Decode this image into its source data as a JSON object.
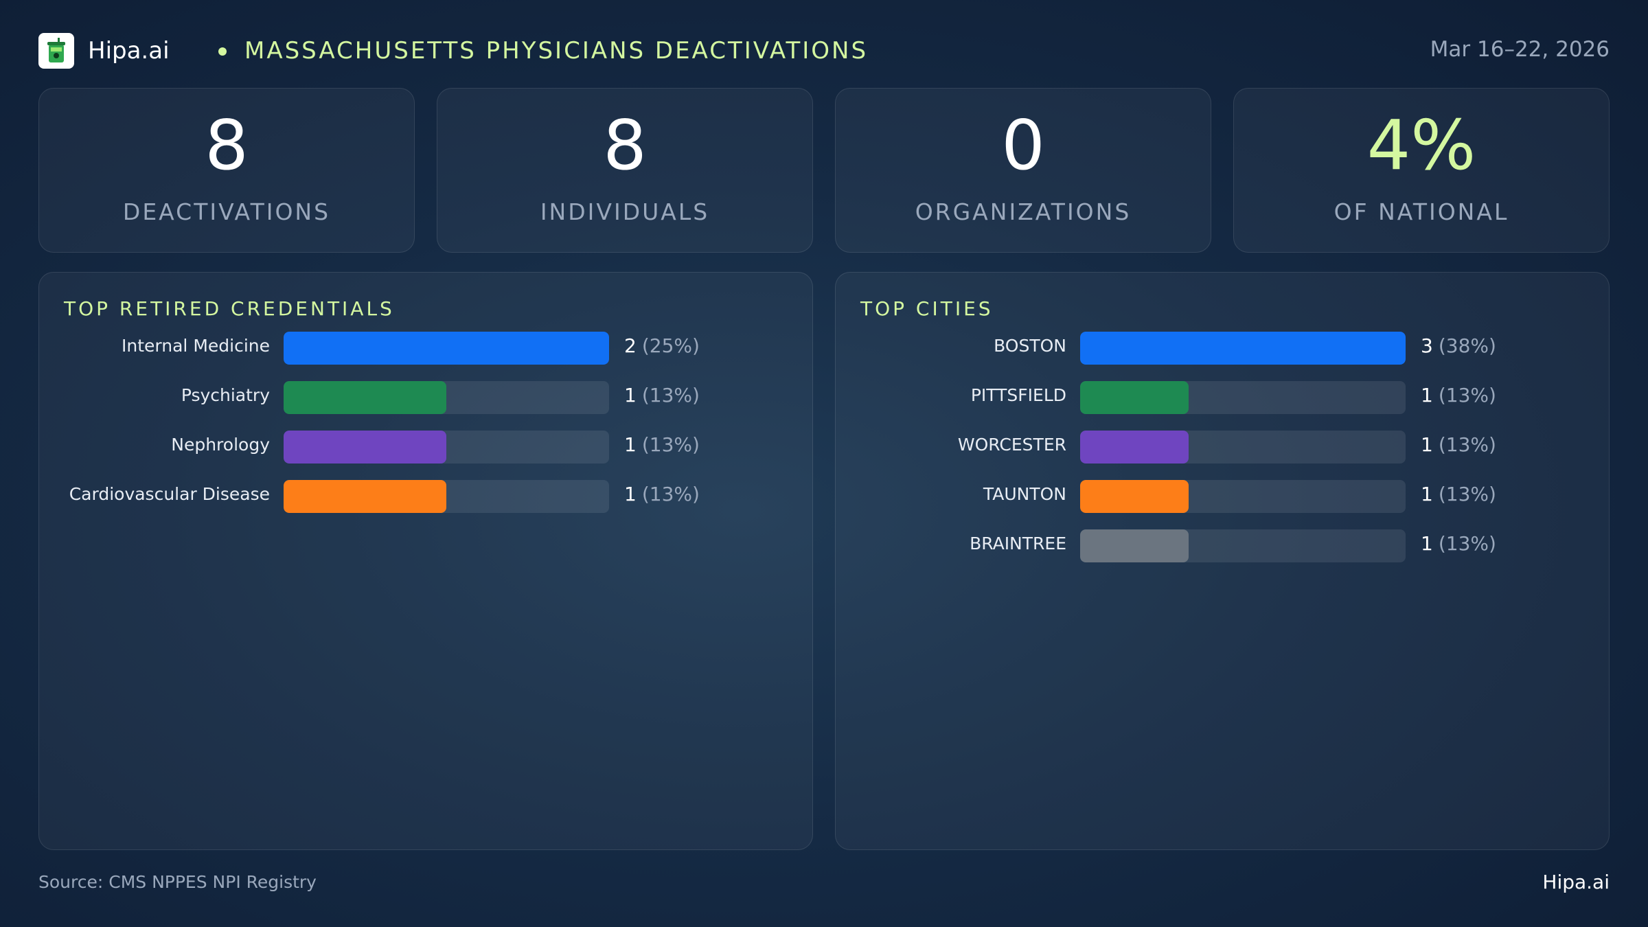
{
  "header": {
    "brand": "Hipa.ai",
    "title": "MASSACHUSETTS PHYSICIANS DEACTIVATIONS",
    "date_range": "Mar 16–22, 2026",
    "logo_icon": "cup-icon"
  },
  "stats": [
    {
      "value": "8",
      "label": "DEACTIVATIONS"
    },
    {
      "value": "8",
      "label": "INDIVIDUALS"
    },
    {
      "value": "0",
      "label": "ORGANIZATIONS"
    },
    {
      "value": "4%",
      "label": "OF NATIONAL"
    }
  ],
  "colors": {
    "accent": "#d4f7a0",
    "blue": "#1170f5",
    "green": "#1e8a52",
    "purple": "#6f45c0",
    "orange": "#fd7e18",
    "gray": "#6b7580"
  },
  "chart_data": [
    {
      "type": "bar",
      "orientation": "horizontal",
      "title": "TOP RETIRED CREDENTIALS",
      "categories": [
        "Internal Medicine",
        "Psychiatry",
        "Nephrology",
        "Cardiovascular Disease"
      ],
      "values": [
        2,
        1,
        1,
        1
      ],
      "value_labels": [
        "2",
        "1",
        "1",
        "1"
      ],
      "percent_labels": [
        "(25%)",
        "(13%)",
        "(13%)",
        "(13%)"
      ],
      "bar_colors": [
        "#1170f5",
        "#1e8a52",
        "#6f45c0",
        "#fd7e18"
      ],
      "xlim": [
        0,
        2
      ],
      "grid": false
    },
    {
      "type": "bar",
      "orientation": "horizontal",
      "title": "TOP CITIES",
      "categories": [
        "BOSTON",
        "PITTSFIELD",
        "WORCESTER",
        "TAUNTON",
        "BRAINTREE"
      ],
      "values": [
        3,
        1,
        1,
        1,
        1
      ],
      "value_labels": [
        "3",
        "1",
        "1",
        "1",
        "1"
      ],
      "percent_labels": [
        "(38%)",
        "(13%)",
        "(13%)",
        "(13%)",
        "(13%)"
      ],
      "bar_colors": [
        "#1170f5",
        "#1e8a52",
        "#6f45c0",
        "#fd7e18",
        "#6b7580"
      ],
      "xlim": [
        0,
        3
      ],
      "grid": false
    }
  ],
  "footer": {
    "source": "Source: CMS NPPES NPI Registry",
    "brand": "Hipa.ai"
  }
}
